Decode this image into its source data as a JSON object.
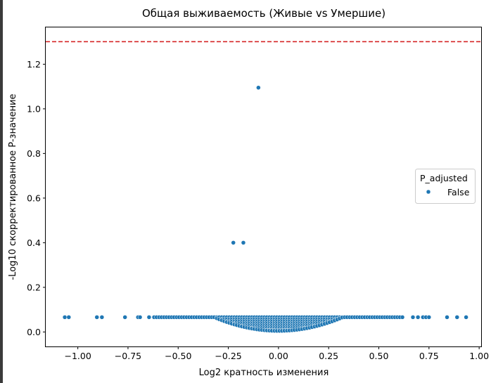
{
  "chart_data": {
    "type": "scatter",
    "title": "Общая выживаемость (Живые vs Умершие)",
    "xlabel": "Log2 кратность изменения",
    "ylabel": "-Log10 скорректированное P-значение",
    "xlim": [
      -1.16,
      1.01
    ],
    "ylim": [
      -0.065,
      1.365
    ],
    "xticks": [
      -1.0,
      -0.75,
      -0.5,
      -0.25,
      0.0,
      0.25,
      0.5,
      0.75,
      1.0
    ],
    "xtick_labels": [
      "−1.00",
      "−0.75",
      "−0.50",
      "−0.25",
      "0.00",
      "0.25",
      "0.50",
      "0.75",
      "1.00"
    ],
    "yticks": [
      0.0,
      0.2,
      0.4,
      0.6,
      0.8,
      1.0,
      1.2
    ],
    "ytick_labels": [
      "0.0",
      "0.2",
      "0.4",
      "0.6",
      "0.8",
      "1.0",
      "1.2"
    ],
    "threshold_line": {
      "y": 1.301,
      "color": "#d62728",
      "style": "dashed"
    },
    "grid": false,
    "legend": {
      "title": "P_adjusted",
      "entries": [
        "False"
      ],
      "placement": "center-right"
    },
    "series": [
      {
        "name": "False",
        "color": "#1f77b4",
        "highlight_points": [
          [
            -0.1,
            1.095
          ],
          [
            -0.225,
            0.4
          ],
          [
            -0.175,
            0.4
          ]
        ],
        "cluster_plateau_y": 0.066,
        "cluster_plateau_x": [
          -0.62,
          0.62
        ],
        "cluster_min_y": 0.005,
        "cluster_dip_half_width": 0.32,
        "outlier_x": [
          -1.065,
          -1.045,
          -0.905,
          -0.88,
          -0.765,
          -0.7,
          -0.69,
          -0.645,
          0.67,
          0.695,
          0.72,
          0.735,
          0.75,
          0.84,
          0.89,
          0.935
        ],
        "outlier_y": 0.066
      }
    ]
  }
}
